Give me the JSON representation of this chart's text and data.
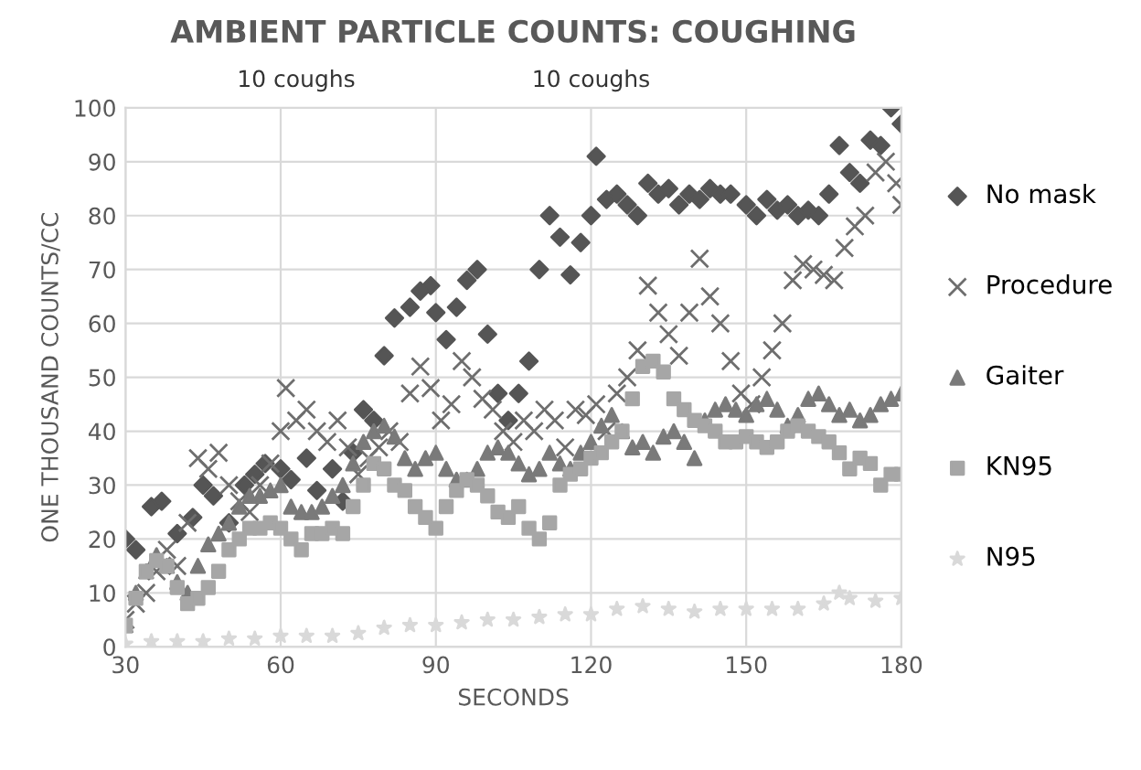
{
  "chart_data": {
    "type": "scatter",
    "title": "AMBIENT PARTICLE COUNTS: COUGHING",
    "xlabel": "SECONDS",
    "ylabel": "ONE THOUSAND COUNTS/CC",
    "annotations": [
      "10 coughs",
      "10 coughs"
    ],
    "xlim": [
      30,
      180
    ],
    "xticks": [
      30,
      60,
      90,
      120,
      150,
      180
    ],
    "ylim": [
      0,
      100
    ],
    "yticks": [
      0,
      10,
      20,
      30,
      40,
      50,
      60,
      70,
      80,
      90,
      100
    ],
    "grid": true,
    "legend": "right",
    "series": [
      {
        "name": "No mask",
        "color": "#555555",
        "marker": "diamond",
        "x": [
          30,
          32,
          35,
          37,
          40,
          43,
          45,
          47,
          50,
          53,
          55,
          57,
          60,
          62,
          65,
          67,
          70,
          72,
          74,
          76,
          78,
          80,
          82,
          85,
          87,
          89,
          90,
          92,
          94,
          96,
          98,
          100,
          102,
          104,
          106,
          108,
          110,
          112,
          114,
          116,
          118,
          120,
          121,
          123,
          125,
          127,
          129,
          131,
          133,
          135,
          137,
          139,
          141,
          143,
          145,
          147,
          150,
          152,
          154,
          156,
          158,
          160,
          162,
          164,
          166,
          168,
          170,
          172,
          174,
          176,
          178,
          180
        ],
        "values": [
          20,
          18,
          26,
          27,
          21,
          24,
          30,
          28,
          23,
          30,
          32,
          34,
          33,
          31,
          35,
          29,
          33,
          27,
          36,
          44,
          42,
          54,
          61,
          63,
          66,
          67,
          62,
          57,
          63,
          68,
          70,
          58,
          47,
          42,
          47,
          53,
          70,
          80,
          76,
          69,
          75,
          80,
          91,
          83,
          84,
          82,
          80,
          86,
          84,
          85,
          82,
          84,
          83,
          85,
          84,
          84,
          82,
          80,
          83,
          81,
          82,
          80,
          81,
          80,
          84,
          93,
          88,
          86,
          94,
          93,
          100,
          97
        ]
      },
      {
        "name": "Procedure",
        "color": "#6e6e6e",
        "marker": "cross",
        "x": [
          30,
          32,
          34,
          36,
          38,
          40,
          42,
          44,
          46,
          48,
          50,
          52,
          54,
          56,
          58,
          60,
          61,
          63,
          65,
          67,
          69,
          71,
          73,
          75,
          77,
          79,
          81,
          83,
          85,
          87,
          89,
          91,
          93,
          95,
          97,
          99,
          101,
          103,
          105,
          107,
          109,
          111,
          113,
          115,
          117,
          119,
          121,
          123,
          125,
          127,
          129,
          131,
          133,
          135,
          137,
          139,
          141,
          143,
          145,
          147,
          149,
          151,
          153,
          155,
          157,
          159,
          161,
          163,
          165,
          167,
          169,
          171,
          173,
          175,
          177,
          179,
          180
        ],
        "values": [
          5,
          8,
          10,
          14,
          18,
          15,
          23,
          35,
          33,
          36,
          30,
          27,
          25,
          30,
          34,
          40,
          48,
          42,
          44,
          40,
          38,
          42,
          37,
          32,
          35,
          37,
          40,
          38,
          47,
          52,
          48,
          42,
          45,
          53,
          50,
          46,
          44,
          40,
          38,
          42,
          40,
          44,
          42,
          37,
          44,
          43,
          45,
          40,
          47,
          50,
          55,
          67,
          62,
          58,
          54,
          62,
          72,
          65,
          60,
          53,
          47,
          45,
          50,
          55,
          60,
          68,
          71,
          70,
          69,
          68,
          74,
          78,
          80,
          88,
          90,
          86,
          82
        ]
      },
      {
        "name": "Gaiter",
        "color": "#7a7a7a",
        "marker": "triangle",
        "x": [
          30,
          32,
          34,
          36,
          38,
          40,
          42,
          44,
          46,
          48,
          50,
          52,
          54,
          56,
          58,
          60,
          62,
          64,
          66,
          68,
          70,
          72,
          74,
          76,
          78,
          80,
          82,
          84,
          86,
          88,
          90,
          92,
          94,
          96,
          98,
          100,
          102,
          104,
          106,
          108,
          110,
          112,
          114,
          116,
          118,
          120,
          122,
          124,
          126,
          128,
          130,
          132,
          134,
          136,
          138,
          140,
          142,
          144,
          146,
          148,
          150,
          152,
          154,
          156,
          158,
          160,
          162,
          164,
          166,
          168,
          170,
          172,
          174,
          176,
          178,
          180
        ],
        "values": [
          4,
          10,
          14,
          17,
          15,
          12,
          10,
          15,
          19,
          21,
          23,
          26,
          28,
          28,
          29,
          30,
          26,
          25,
          25,
          26,
          28,
          30,
          34,
          38,
          40,
          41,
          39,
          35,
          33,
          35,
          36,
          33,
          31,
          31,
          33,
          36,
          37,
          36,
          34,
          32,
          33,
          36,
          34,
          33,
          36,
          38,
          41,
          43,
          40,
          37,
          38,
          36,
          39,
          40,
          38,
          35,
          42,
          44,
          45,
          44,
          43,
          45,
          46,
          44,
          41,
          43,
          46,
          47,
          45,
          43,
          44,
          42,
          43,
          45,
          46,
          47
        ]
      },
      {
        "name": "KN95",
        "color": "#a6a6a6",
        "marker": "square",
        "x": [
          30,
          32,
          34,
          36,
          38,
          40,
          42,
          44,
          46,
          48,
          50,
          52,
          54,
          56,
          58,
          60,
          62,
          64,
          66,
          68,
          70,
          72,
          74,
          76,
          78,
          80,
          82,
          84,
          86,
          88,
          90,
          92,
          94,
          96,
          98,
          100,
          102,
          104,
          106,
          108,
          110,
          112,
          114,
          116,
          118,
          120,
          122,
          124,
          126,
          128,
          130,
          132,
          134,
          136,
          138,
          140,
          142,
          144,
          146,
          148,
          150,
          152,
          154,
          156,
          158,
          160,
          162,
          164,
          166,
          168,
          170,
          172,
          174,
          176,
          178,
          180
        ],
        "values": [
          4,
          9,
          14,
          16,
          15,
          11,
          8,
          9,
          11,
          14,
          18,
          20,
          22,
          22,
          23,
          22,
          20,
          18,
          21,
          21,
          22,
          21,
          26,
          30,
          34,
          33,
          30,
          29,
          26,
          24,
          22,
          26,
          29,
          31,
          30,
          28,
          25,
          24,
          26,
          22,
          20,
          23,
          30,
          32,
          33,
          35,
          36,
          38,
          40,
          46,
          52,
          53,
          51,
          46,
          44,
          42,
          41,
          40,
          38,
          38,
          39,
          38,
          37,
          38,
          40,
          41,
          40,
          39,
          38,
          36,
          33,
          35,
          34,
          30,
          32,
          32
        ]
      },
      {
        "name": "N95",
        "color": "#d9d9d9",
        "marker": "star",
        "x": [
          30,
          35,
          40,
          45,
          50,
          55,
          60,
          65,
          70,
          75,
          80,
          85,
          90,
          95,
          100,
          105,
          110,
          115,
          120,
          125,
          130,
          135,
          140,
          145,
          150,
          155,
          160,
          165,
          168,
          170,
          175,
          180
        ],
        "values": [
          0.5,
          1,
          1,
          1,
          1.5,
          1.5,
          2,
          2,
          2,
          2.5,
          3.5,
          4,
          4,
          4.5,
          5,
          5,
          5.5,
          6,
          6,
          7,
          7.5,
          7,
          6.5,
          7,
          7,
          7,
          7,
          8,
          10,
          9,
          8.5,
          9
        ]
      }
    ]
  }
}
